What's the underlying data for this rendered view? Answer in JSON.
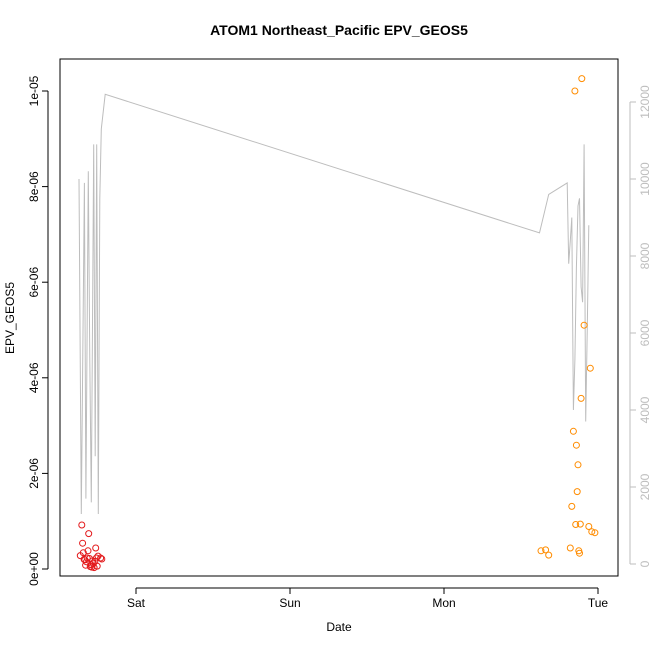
{
  "chart_data": {
    "type": "scatter",
    "title": "ATOM1 Northeast_Pacific EPV_GEOS5",
    "xlabel": "Date",
    "ylabel": "EPV_GEOS5",
    "x_ticks": [
      "Sat",
      "Sun",
      "Mon",
      "Tue"
    ],
    "ylim": [
      0,
      1.03e-05
    ],
    "y_ticks": [
      "0e+00",
      "2e-06",
      "4e-06",
      "6e-06",
      "8e-06",
      "1e-05"
    ],
    "y2_ticks": [
      "0",
      "2000",
      "4000",
      "6000",
      "8000",
      "10000",
      "12000"
    ],
    "y2lim": [
      0,
      12500
    ],
    "grid": false,
    "colors": {
      "series_a": "#e31a1c",
      "series_b": "#ff8c00",
      "line": "#bdbdbd"
    },
    "series": [
      {
        "marker": "circle-open",
        "color": "#e31a1c",
        "points": [
          [
            -0.362,
            2.8e-07
          ],
          [
            -0.352,
            9.2e-07
          ],
          [
            -0.347,
            5.4e-07
          ],
          [
            -0.342,
            3.4e-07
          ],
          [
            -0.337,
            2e-07
          ],
          [
            -0.332,
            1.9e-07
          ],
          [
            -0.327,
            8e-08
          ],
          [
            -0.322,
            1.5e-07
          ],
          [
            -0.317,
            2.3e-07
          ],
          [
            -0.312,
            3.8e-07
          ],
          [
            -0.307,
            7.4e-07
          ],
          [
            -0.302,
            2.2e-07
          ],
          [
            -0.297,
            5e-08
          ],
          [
            -0.292,
            9e-08
          ],
          [
            -0.287,
            4e-08
          ],
          [
            -0.282,
            1.7e-07
          ],
          [
            -0.277,
            1.1e-07
          ],
          [
            -0.272,
            3e-08
          ],
          [
            -0.267,
            1.6e-07
          ],
          [
            -0.262,
            4.4e-07
          ],
          [
            -0.257,
            2.3e-07
          ],
          [
            -0.252,
            6e-08
          ],
          [
            -0.247,
            2.7e-07
          ],
          [
            -0.23,
            2.3e-07
          ],
          [
            -0.222,
            2.1e-07
          ]
        ]
      },
      {
        "marker": "circle-open",
        "color": "#ff8c00",
        "points": [
          [
            2.63,
            3.8e-07
          ],
          [
            2.66,
            4e-07
          ],
          [
            2.68,
            2.9e-07
          ],
          [
            2.82,
            4.4e-07
          ],
          [
            2.83,
            1.31e-06
          ],
          [
            2.84,
            2.88e-06
          ],
          [
            2.85,
            1e-05
          ],
          [
            2.855,
            9.3e-07
          ],
          [
            2.86,
            2.59e-06
          ],
          [
            2.865,
            1.62e-06
          ],
          [
            2.87,
            2.18e-06
          ],
          [
            2.875,
            3.8e-07
          ],
          [
            2.88,
            3.3e-07
          ],
          [
            2.885,
            9.4e-07
          ],
          [
            2.89,
            3.57e-06
          ],
          [
            2.895,
            1.026e-05
          ],
          [
            2.91,
            5.1e-06
          ],
          [
            2.94,
            8.9e-07
          ],
          [
            2.95,
            4.2e-06
          ],
          [
            2.96,
            7.8e-07
          ],
          [
            2.98,
            7.6e-07
          ]
        ]
      }
    ],
    "line_series": {
      "axis": "right",
      "color": "#bdbdbd",
      "points": [
        [
          -0.37,
          10000
        ],
        [
          -0.355,
          1300
        ],
        [
          -0.335,
          9900
        ],
        [
          -0.325,
          1700
        ],
        [
          -0.31,
          10200
        ],
        [
          -0.3,
          5300
        ],
        [
          -0.29,
          1600
        ],
        [
          -0.275,
          10900
        ],
        [
          -0.265,
          2800
        ],
        [
          -0.255,
          10900
        ],
        [
          -0.245,
          1300
        ],
        [
          -0.235,
          9500
        ],
        [
          -0.225,
          11300
        ],
        [
          -0.2,
          12200
        ],
        [
          2.62,
          8600
        ],
        [
          2.68,
          9600
        ],
        [
          2.8,
          9900
        ],
        [
          2.81,
          7800
        ],
        [
          2.82,
          8400
        ],
        [
          2.83,
          9000
        ],
        [
          2.84,
          4000
        ],
        [
          2.85,
          5300
        ],
        [
          2.86,
          7700
        ],
        [
          2.87,
          9300
        ],
        [
          2.88,
          9500
        ],
        [
          2.89,
          7200
        ],
        [
          2.9,
          6800
        ],
        [
          2.91,
          10900
        ],
        [
          2.92,
          3700
        ],
        [
          2.93,
          6000
        ],
        [
          2.94,
          8800
        ]
      ]
    }
  }
}
